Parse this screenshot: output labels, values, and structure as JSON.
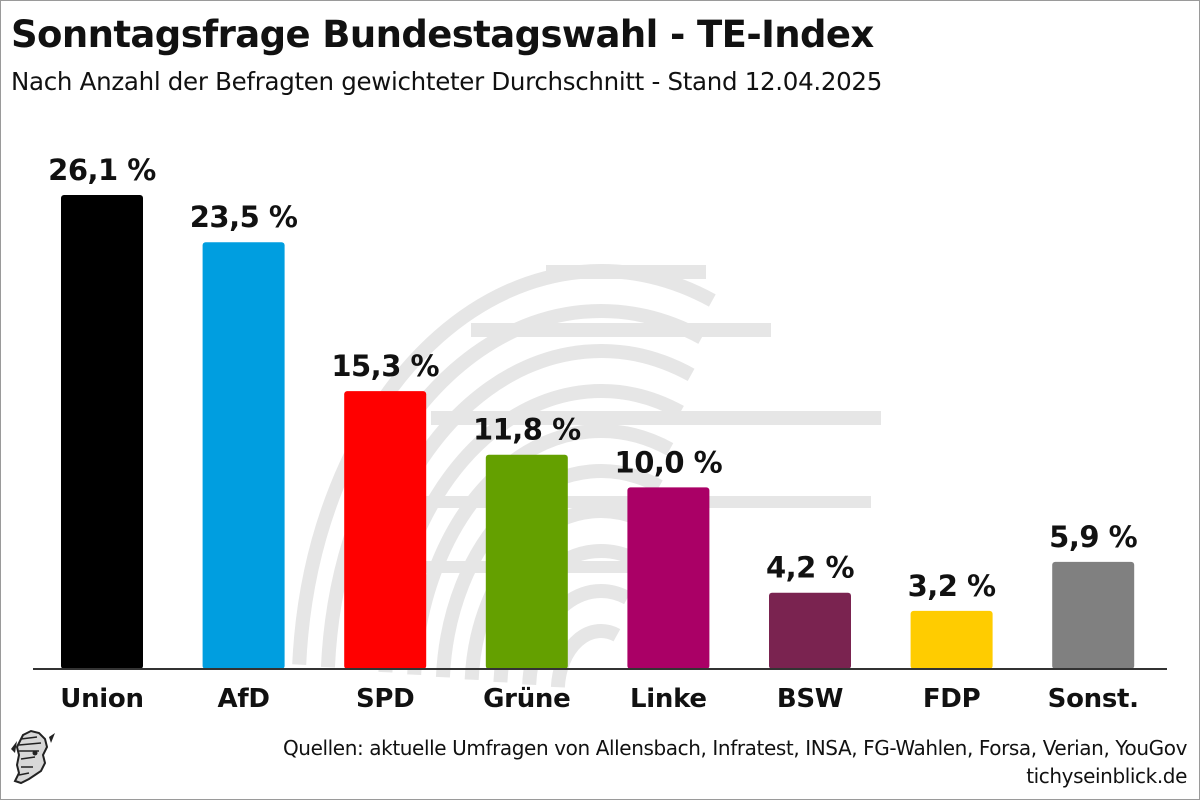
{
  "header": {
    "title": "Sonntagsfrage Bundestagswahl - TE-Index",
    "subtitle": "Nach Anzahl der Befragten gewichteter Durchschnitt - Stand 12.04.2025"
  },
  "footer": {
    "sources": "Quellen: aktuelle Umfragen von Allensbach, Infratest, INSA, FG-Wahlen, Forsa, Verian, YouGov",
    "site": "tichyseinblick.de",
    "logo_icon": "hermes-head-logo-icon"
  },
  "chart_data": {
    "type": "bar",
    "title": "Sonntagsfrage Bundestagswahl - TE-Index",
    "subtitle": "Nach Anzahl der Befragten gewichteter Durchschnitt - Stand 12.04.2025",
    "categories": [
      "Union",
      "AfD",
      "SPD",
      "Grüne",
      "Linke",
      "BSW",
      "FDP",
      "Sonst."
    ],
    "values": [
      26.1,
      23.5,
      15.3,
      11.8,
      10.0,
      4.2,
      3.2,
      5.9
    ],
    "value_labels": [
      "26,1 %",
      "23,5 %",
      "15,3 %",
      "11,8 %",
      "10,0 %",
      "4,2 %",
      "3,2 %",
      "5,9 %"
    ],
    "colors": [
      "#000000",
      "#009EE0",
      "#FF0000",
      "#64A000",
      "#AA0066",
      "#7A2350",
      "#FFCC00",
      "#808080"
    ],
    "unit": "%",
    "xlabel": "",
    "ylabel": "",
    "ylim": [
      0,
      26.1
    ],
    "grid": false,
    "legend": "none",
    "background_icon": "reichstag-dome-watermark-icon"
  }
}
